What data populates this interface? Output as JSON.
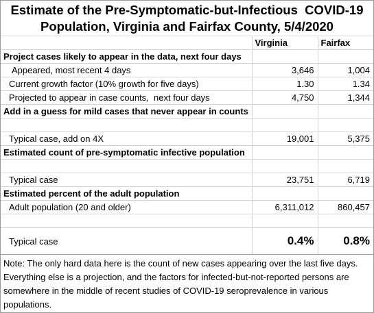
{
  "title": [
    "Estimate of the Pre-Symptomatic-but-Infectious  COVID-19",
    "Population, Virginia and Fairfax County, 5/4/2020"
  ],
  "columns": [
    "Virginia",
    "Fairfax"
  ],
  "sections": [
    {
      "heading": "Project cases likely to appear in the data, next four days",
      "rows": [
        {
          "label": "Appeared, most recent 4 days",
          "values": [
            "3,646",
            "1,004"
          ]
        },
        {
          "label": "Current growth factor (10% growth for five days)",
          "values": [
            "1.30",
            "1.34"
          ]
        },
        {
          "label": "Projected to appear in case counts,  next four days",
          "values": [
            "4,750",
            "1,344"
          ]
        }
      ]
    },
    {
      "heading": "Add in a guess for mild cases that never appear in counts",
      "rows": [
        {
          "label": "Typical case, add on 4X",
          "values": [
            "19,001",
            "5,375"
          ]
        }
      ]
    },
    {
      "heading": "Estimated count of pre-symptomatic infective population",
      "rows": [
        {
          "label": "Typical case",
          "values": [
            "23,751",
            "6,719"
          ]
        }
      ]
    },
    {
      "heading": "Estimated percent of the adult population",
      "rows": [
        {
          "label": "Adult population (20 and older)",
          "values": [
            "6,311,012",
            "860,457"
          ]
        },
        {
          "label": "Typical case",
          "values": [
            "0.4%",
            "0.8%"
          ]
        }
      ]
    }
  ],
  "note": "Note:  The only hard data here is the count of new cases appearing over the last five days.  Everything else is a projection, and the factors for infected-but-not-reported persons are somewhere in the middle of recent studies of COVID-19 seroprevalence in various populations."
}
